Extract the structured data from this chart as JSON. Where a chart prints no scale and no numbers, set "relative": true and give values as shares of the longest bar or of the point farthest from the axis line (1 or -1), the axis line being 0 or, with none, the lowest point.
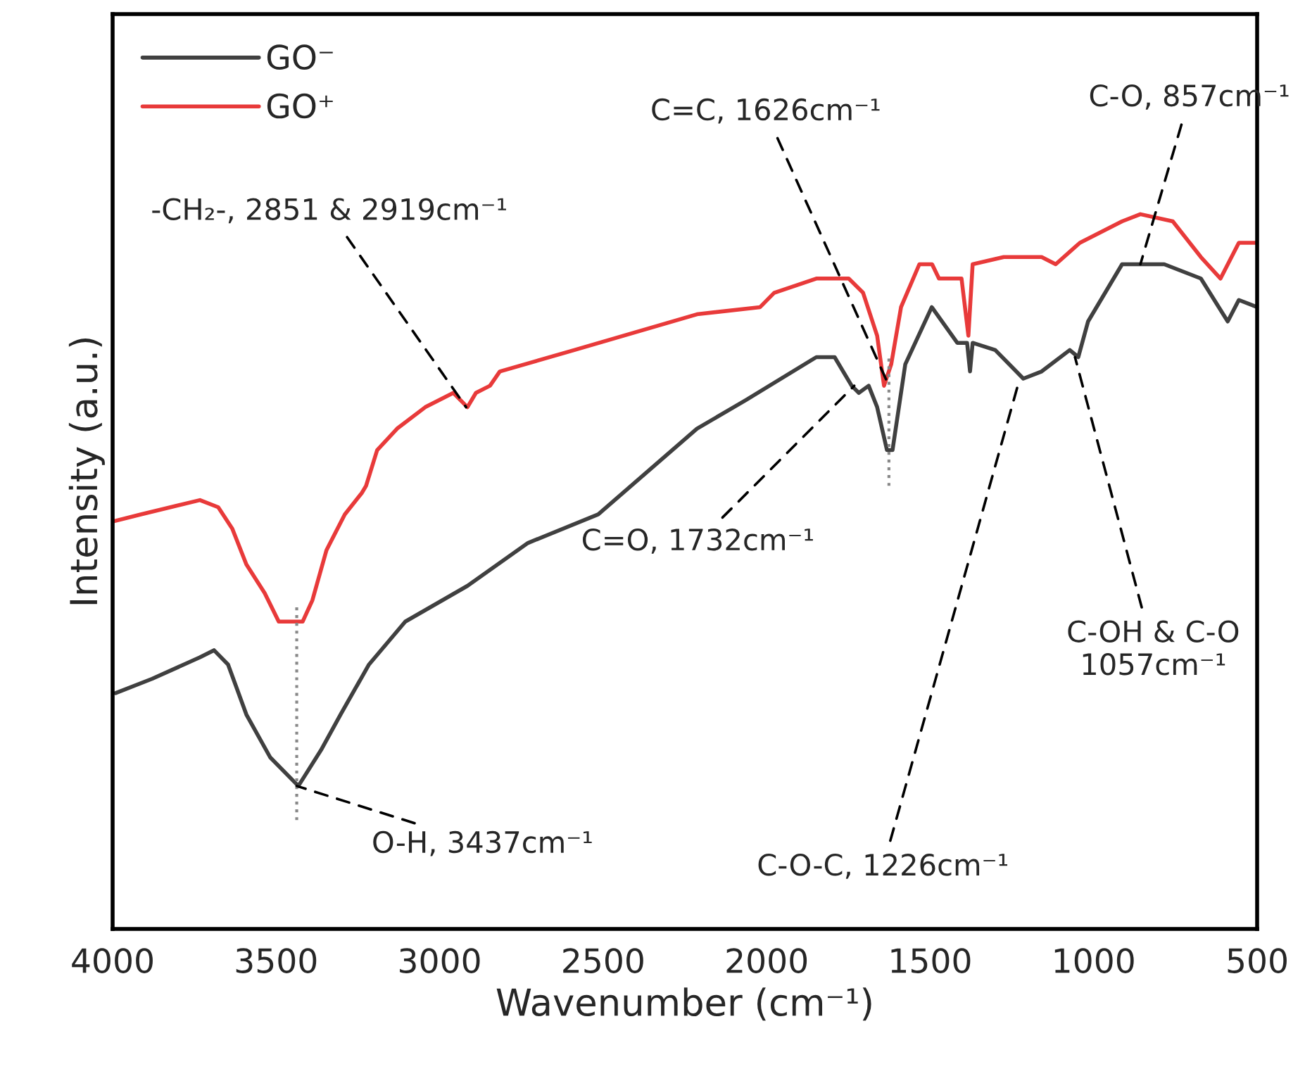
{
  "chart_data": {
    "type": "line",
    "relative": true,
    "xlabel": "Wavenumber (cm⁻¹)",
    "ylabel": "Intensity (a.u.)",
    "xlim": [
      4000,
      500
    ],
    "xticks": [
      4000,
      3500,
      3000,
      2500,
      2000,
      1500,
      1000,
      500
    ],
    "tick_labels": "x",
    "grid": false,
    "legend": "top left",
    "marker": "none",
    "line_style": "solid",
    "series": [
      {
        "name": "GO⁻",
        "color": "#404040",
        "x": [
          3991,
          3879,
          3733,
          3690,
          3647,
          3591,
          3518,
          3432,
          3363,
          3303,
          3216,
          3105,
          2915,
          2730,
          2515,
          2213,
          2063,
          1848,
          1792,
          1740,
          1718,
          1688,
          1662,
          1632,
          1615,
          1576,
          1495,
          1417,
          1387,
          1378,
          1370,
          1301,
          1215,
          1159,
          1073,
          1047,
          1017,
          913,
          870,
          784,
          672,
          590,
          556,
          500
        ],
        "values": [
          0.33,
          0.35,
          0.38,
          0.39,
          0.37,
          0.3,
          0.24,
          0.2,
          0.25,
          0.3,
          0.37,
          0.43,
          0.48,
          0.54,
          0.58,
          0.7,
          0.74,
          0.8,
          0.8,
          0.76,
          0.75,
          0.76,
          0.73,
          0.67,
          0.67,
          0.79,
          0.87,
          0.82,
          0.82,
          0.78,
          0.82,
          0.81,
          0.77,
          0.78,
          0.81,
          0.8,
          0.85,
          0.93,
          0.93,
          0.93,
          0.91,
          0.85,
          0.88,
          0.87
        ]
      },
      {
        "name": "GO⁺",
        "color": "#e83a3a",
        "x": [
          4000,
          3914,
          3733,
          3677,
          3634,
          3591,
          3535,
          3492,
          3419,
          3389,
          3346,
          3290,
          3238,
          3225,
          3191,
          3130,
          3044,
          2958,
          2915,
          2889,
          2846,
          2816,
          2588,
          2213,
          2020,
          1977,
          1848,
          1749,
          1705,
          1662,
          1641,
          1619,
          1589,
          1533,
          1494,
          1473,
          1404,
          1383,
          1370,
          1275,
          1159,
          1116,
          1042,
          913,
          857,
          758,
          672,
          612,
          556,
          500
        ],
        "values": [
          0.57,
          0.58,
          0.6,
          0.59,
          0.56,
          0.51,
          0.47,
          0.43,
          0.43,
          0.46,
          0.53,
          0.58,
          0.61,
          0.62,
          0.67,
          0.7,
          0.73,
          0.75,
          0.73,
          0.75,
          0.76,
          0.78,
          0.81,
          0.86,
          0.87,
          0.89,
          0.91,
          0.91,
          0.89,
          0.83,
          0.76,
          0.79,
          0.87,
          0.93,
          0.93,
          0.91,
          0.91,
          0.83,
          0.93,
          0.94,
          0.94,
          0.93,
          0.96,
          0.99,
          1.0,
          0.99,
          0.94,
          0.91,
          0.96,
          0.96
        ]
      }
    ],
    "ref_lines": [
      {
        "axis": "x",
        "value": 3437,
        "color": "#888888",
        "line_style": "dotted"
      },
      {
        "axis": "x",
        "value": 1626,
        "color": "#888888",
        "line_style": "dotted"
      }
    ],
    "annotations": [
      {
        "text": "O-H, 3437cm⁻¹",
        "x": 3437,
        "y": 0.2
      },
      {
        "text": "-CH₂-, 2851 & 2919cm⁻¹",
        "x": 2919,
        "y": 0.73
      },
      {
        "text": "C=C, 1626cm⁻¹",
        "x": 1626,
        "y": 0.76
      },
      {
        "text": "C=O, 1732cm⁻¹",
        "x": 1732,
        "y": 0.76
      },
      {
        "text": "C-OH & C-O\n1057cm⁻¹",
        "x": 1057,
        "y": 0.8
      },
      {
        "text": "C-O-C, 1226cm⁻¹",
        "x": 1226,
        "y": 0.77
      },
      {
        "text": "C-O, 857cm⁻¹",
        "x": 857,
        "y": 0.93
      }
    ]
  }
}
